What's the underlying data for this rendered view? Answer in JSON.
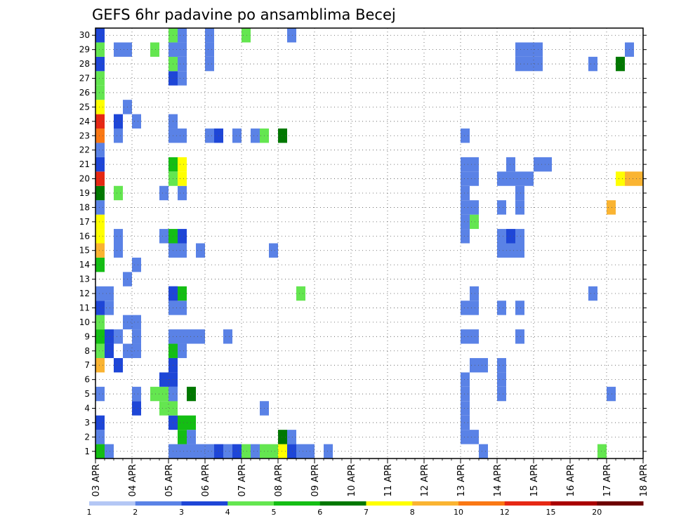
{
  "chart_data": {
    "type": "heatmap",
    "title": "GEFS 6hr padavine po ansamblima Becej",
    "xlabel": "",
    "ylabel": "",
    "x_tick_labels": [
      "03 APR",
      "04 APR",
      "05 APR",
      "06 APR",
      "07 APR",
      "08 APR",
      "09 APR",
      "10 APR",
      "11 APR",
      "12 APR",
      "13 APR",
      "14 APR",
      "15 APR",
      "16 APR",
      "17 APR",
      "18 APR"
    ],
    "time_steps": 60,
    "steps_per_day": 4,
    "y_min": 0.5,
    "y_max": 30.5,
    "y_ticks": [
      1,
      2,
      3,
      4,
      5,
      6,
      7,
      8,
      9,
      10,
      11,
      12,
      13,
      14,
      15,
      16,
      17,
      18,
      19,
      20,
      21,
      22,
      23,
      24,
      25,
      26,
      27,
      28,
      29,
      30
    ],
    "grid": true,
    "legend_placement": "bottom",
    "levels": [
      "1",
      "2",
      "3",
      "4",
      "5",
      "6",
      "7",
      "8",
      "10",
      "12",
      "15",
      "20"
    ],
    "colors": [
      "#b4c7f5",
      "#5a82e6",
      "#1e46d7",
      "#64e650",
      "#14be14",
      "#007800",
      "#ffff00",
      "#fab432",
      "#fa7814",
      "#e62814",
      "#aa0000",
      "#6e0000"
    ],
    "cells": [
      [
        1,
        0,
        4
      ],
      [
        2,
        0,
        1
      ],
      [
        3,
        0,
        2
      ],
      [
        5,
        0,
        1
      ],
      [
        7,
        0,
        7
      ],
      [
        8,
        0,
        3
      ],
      [
        9,
        0,
        4
      ],
      [
        10,
        0,
        3
      ],
      [
        11,
        0,
        2
      ],
      [
        12,
        0,
        1
      ],
      [
        14,
        0,
        4
      ],
      [
        15,
        0,
        7
      ],
      [
        16,
        0,
        6
      ],
      [
        17,
        0,
        6
      ],
      [
        18,
        0,
        1
      ],
      [
        19,
        0,
        5
      ],
      [
        20,
        0,
        9
      ],
      [
        21,
        0,
        2
      ],
      [
        22,
        0,
        1
      ],
      [
        23,
        0,
        8
      ],
      [
        24,
        0,
        9
      ],
      [
        25,
        0,
        6
      ],
      [
        26,
        0,
        3
      ],
      [
        27,
        0,
        3
      ],
      [
        28,
        0,
        2
      ],
      [
        29,
        0,
        3
      ],
      [
        30,
        0,
        2
      ],
      [
        1,
        1,
        1
      ],
      [
        8,
        1,
        2
      ],
      [
        9,
        1,
        2
      ],
      [
        11,
        1,
        1
      ],
      [
        12,
        1,
        1
      ],
      [
        7,
        2,
        2
      ],
      [
        9,
        2,
        1
      ],
      [
        15,
        2,
        1
      ],
      [
        16,
        2,
        1
      ],
      [
        19,
        2,
        3
      ],
      [
        23,
        2,
        1
      ],
      [
        24,
        2,
        2
      ],
      [
        29,
        2,
        1
      ],
      [
        8,
        3,
        1
      ],
      [
        10,
        3,
        1
      ],
      [
        13,
        3,
        1
      ],
      [
        25,
        3,
        1
      ],
      [
        29,
        3,
        1
      ],
      [
        8,
        4,
        1
      ],
      [
        9,
        4,
        1
      ],
      [
        10,
        4,
        1
      ],
      [
        14,
        4,
        1
      ],
      [
        24,
        4,
        1
      ],
      [
        4,
        4,
        2
      ],
      [
        5,
        4,
        1
      ],
      [
        5,
        6,
        3
      ],
      [
        29,
        6,
        3
      ],
      [
        5,
        7,
        3
      ],
      [
        4,
        7,
        3
      ],
      [
        6,
        7,
        2
      ],
      [
        16,
        7,
        1
      ],
      [
        19,
        7,
        1
      ],
      [
        5,
        8,
        2
      ],
      [
        29,
        8,
        1
      ],
      [
        6,
        8,
        2
      ],
      [
        7,
        8,
        2
      ],
      [
        12,
        8,
        2
      ],
      [
        1,
        8,
        1
      ],
      [
        3,
        8,
        2
      ],
      [
        4,
        8,
        3
      ],
      [
        5,
        8,
        1
      ],
      [
        8,
        8,
        4
      ],
      [
        9,
        8,
        1
      ],
      [
        11,
        8,
        1
      ],
      [
        12,
        8,
        2
      ],
      [
        15,
        8,
        1
      ],
      [
        16,
        8,
        4
      ],
      [
        21,
        8,
        4
      ],
      [
        27,
        8,
        2
      ],
      [
        28,
        8,
        3
      ],
      [
        29,
        8,
        1
      ],
      [
        30,
        8,
        3
      ],
      [
        24,
        8,
        1
      ],
      [
        20,
        8,
        3
      ],
      [
        23,
        8,
        1
      ],
      [
        1,
        9,
        1
      ],
      [
        2,
        9,
        4
      ],
      [
        3,
        9,
        4
      ],
      [
        8,
        9,
        1
      ],
      [
        9,
        9,
        1
      ],
      [
        11,
        9,
        1
      ],
      [
        12,
        9,
        4
      ],
      [
        15,
        9,
        1
      ],
      [
        16,
        9,
        2
      ],
      [
        19,
        9,
        1
      ],
      [
        20,
        9,
        6
      ],
      [
        21,
        9,
        6
      ],
      [
        23,
        9,
        1
      ],
      [
        27,
        9,
        1
      ],
      [
        28,
        9,
        1
      ],
      [
        29,
        9,
        1
      ],
      [
        30,
        9,
        1
      ],
      [
        1,
        10,
        1
      ],
      [
        2,
        10,
        1
      ],
      [
        3,
        10,
        4
      ],
      [
        5,
        10,
        5
      ],
      [
        9,
        10,
        1
      ],
      [
        1,
        11,
        1
      ],
      [
        9,
        11,
        1
      ],
      [
        15,
        11,
        1
      ],
      [
        1,
        12,
        1
      ],
      [
        23,
        12,
        1
      ],
      [
        28,
        12,
        1
      ],
      [
        29,
        12,
        1
      ],
      [
        30,
        12,
        1
      ],
      [
        1,
        13,
        2
      ],
      [
        23,
        13,
        2
      ],
      [
        1,
        14,
        1
      ],
      [
        9,
        14,
        1
      ],
      [
        1,
        15,
        2
      ],
      [
        23,
        15,
        1
      ],
      [
        1,
        16,
        3
      ],
      [
        30,
        16,
        3
      ],
      [
        1,
        17,
        1
      ],
      [
        23,
        17,
        1
      ],
      [
        1,
        18,
        3
      ],
      [
        4,
        18,
        1
      ],
      [
        23,
        18,
        3
      ],
      [
        1,
        19,
        3
      ],
      [
        15,
        19,
        1
      ],
      [
        1,
        20,
        6
      ],
      [
        2,
        20,
        5
      ],
      [
        23,
        20,
        5
      ],
      [
        1,
        21,
        2
      ],
      [
        2,
        21,
        1
      ],
      [
        30,
        21,
        1
      ],
      [
        1,
        22,
        1
      ],
      [
        12,
        22,
        3
      ],
      [
        1,
        23,
        1
      ],
      [
        1,
        25,
        1
      ]
    ],
    "cells_b": [
      [
        2,
        40,
        1
      ],
      [
        3,
        40,
        1
      ],
      [
        4,
        40,
        1
      ],
      [
        5,
        40,
        1
      ],
      [
        6,
        40,
        1
      ],
      [
        9,
        40,
        1
      ],
      [
        11,
        40,
        1
      ],
      [
        16,
        40,
        1
      ],
      [
        17,
        40,
        1
      ],
      [
        18,
        40,
        1
      ],
      [
        19,
        40,
        1
      ],
      [
        20,
        40,
        1
      ],
      [
        21,
        40,
        1
      ],
      [
        23,
        40,
        1
      ],
      [
        2,
        41,
        1
      ],
      [
        7,
        41,
        1
      ],
      [
        9,
        41,
        1
      ],
      [
        11,
        41,
        1
      ],
      [
        12,
        41,
        1
      ],
      [
        17,
        41,
        3
      ],
      [
        18,
        41,
        1
      ],
      [
        20,
        41,
        1
      ],
      [
        21,
        41,
        1
      ],
      [
        1,
        42,
        1
      ],
      [
        7,
        42,
        1
      ],
      [
        5,
        44,
        1
      ],
      [
        6,
        44,
        1
      ],
      [
        7,
        44,
        1
      ],
      [
        11,
        44,
        1
      ],
      [
        15,
        44,
        1
      ],
      [
        16,
        44,
        1
      ],
      [
        18,
        44,
        1
      ],
      [
        20,
        44,
        1
      ],
      [
        15,
        45,
        1
      ],
      [
        16,
        45,
        2
      ],
      [
        20,
        45,
        1
      ],
      [
        21,
        45,
        1
      ],
      [
        20,
        46,
        1
      ],
      [
        9,
        46,
        1
      ],
      [
        11,
        46,
        1
      ],
      [
        15,
        46,
        1
      ],
      [
        16,
        46,
        1
      ],
      [
        18,
        46,
        1
      ],
      [
        19,
        46,
        1
      ],
      [
        28,
        46,
        1
      ],
      [
        29,
        46,
        1
      ],
      [
        20,
        47,
        1
      ],
      [
        28,
        47,
        1
      ],
      [
        29,
        47,
        1
      ],
      [
        21,
        48,
        1
      ],
      [
        28,
        48,
        1
      ],
      [
        29,
        48,
        1
      ],
      [
        21,
        49,
        1
      ],
      [
        12,
        54,
        1
      ],
      [
        28,
        54,
        1
      ],
      [
        1,
        55,
        3
      ],
      [
        5,
        56,
        1
      ],
      [
        18,
        56,
        7
      ],
      [
        20,
        57,
        6
      ],
      [
        28,
        57,
        5
      ],
      [
        20,
        58,
        7
      ],
      [
        29,
        58,
        1
      ],
      [
        20,
        59,
        7
      ],
      [
        20,
        60,
        7
      ],
      [
        28,
        60,
        1
      ],
      [
        23,
        60,
        1
      ],
      [
        20,
        61,
        3
      ],
      [
        18,
        61,
        2
      ],
      [
        14,
        61,
        1
      ],
      [
        5,
        61,
        2
      ],
      [
        22,
        61,
        1
      ],
      [
        23,
        61,
        2
      ],
      [
        30,
        61,
        1
      ],
      [
        15,
        61,
        1
      ],
      [
        28,
        61,
        2
      ],
      [
        24,
        61,
        1
      ],
      [
        9,
        61,
        1
      ],
      [
        1,
        61,
        3
      ],
      [
        29,
        61,
        1
      ],
      [
        26,
        61,
        1
      ],
      [
        30,
        61,
        2
      ],
      [
        17,
        61,
        1
      ],
      [
        27,
        61,
        2
      ]
    ]
  }
}
